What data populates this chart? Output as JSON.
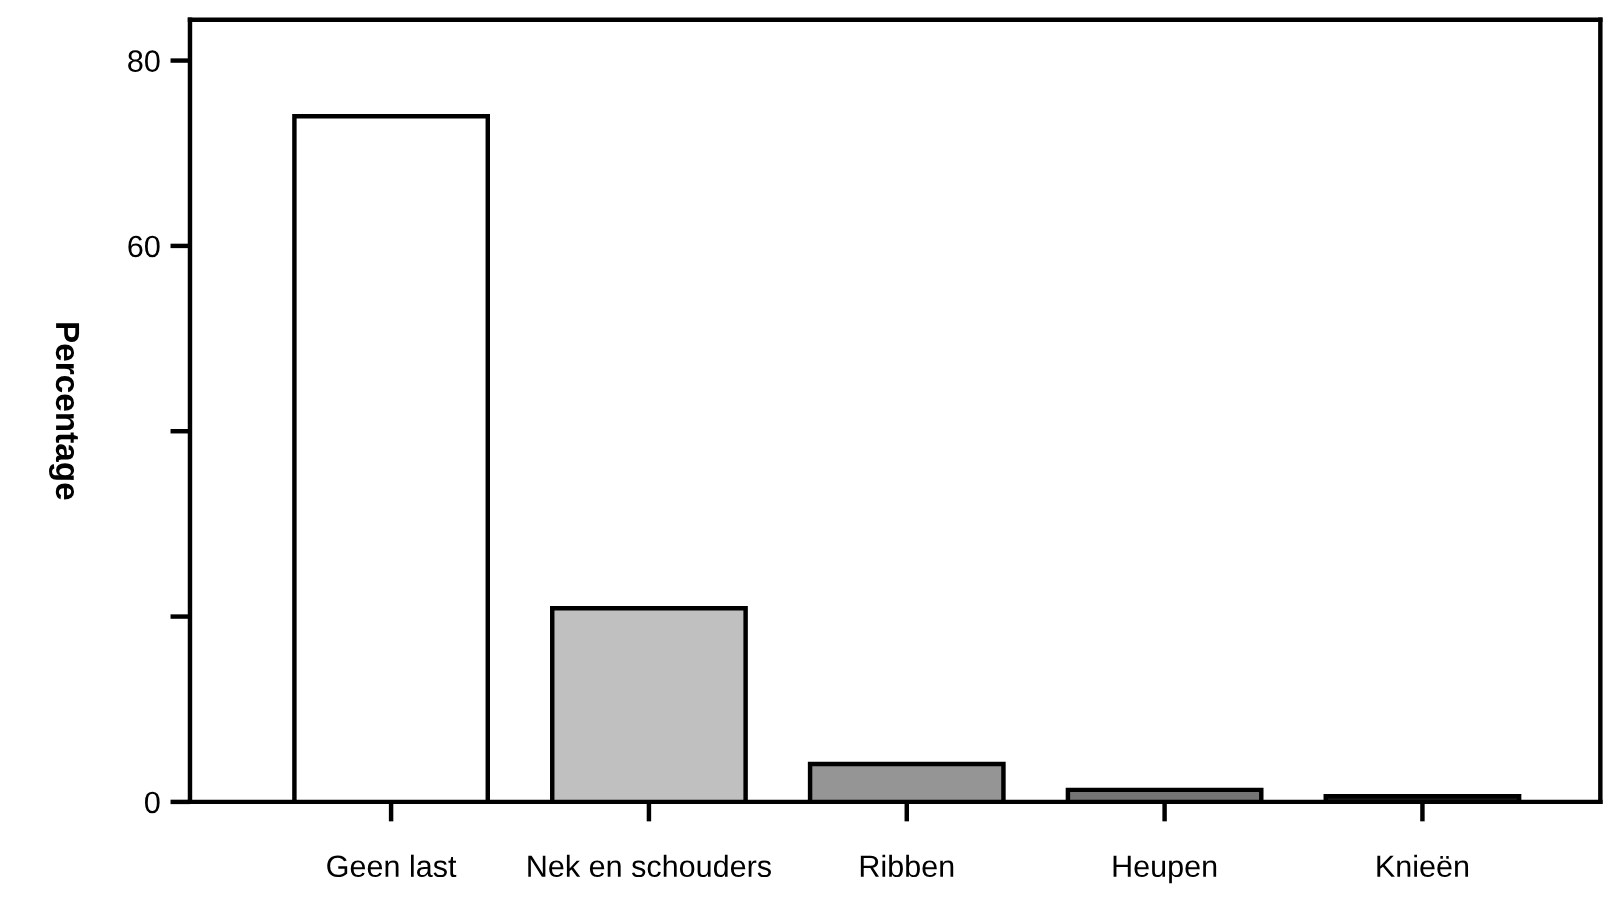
{
  "chart_data": {
    "type": "bar",
    "ylabel": "Percentage",
    "categories": [
      "Geen last",
      "Nek en schouders",
      "Ribben",
      "Heupen",
      "Knieën"
    ],
    "values": [
      74.0,
      20.9,
      4.1,
      1.3,
      0.6
    ],
    "colors": [
      "#ffffff",
      "#c0c0c0",
      "#959595",
      "#757575",
      "#202020"
    ],
    "ylim": [
      0,
      84.4
    ],
    "yticks": [
      0,
      {
        "value": 20,
        "label": null
      },
      {
        "value": 40,
        "label": null
      },
      60,
      80
    ],
    "grid": false,
    "legend": false
  }
}
